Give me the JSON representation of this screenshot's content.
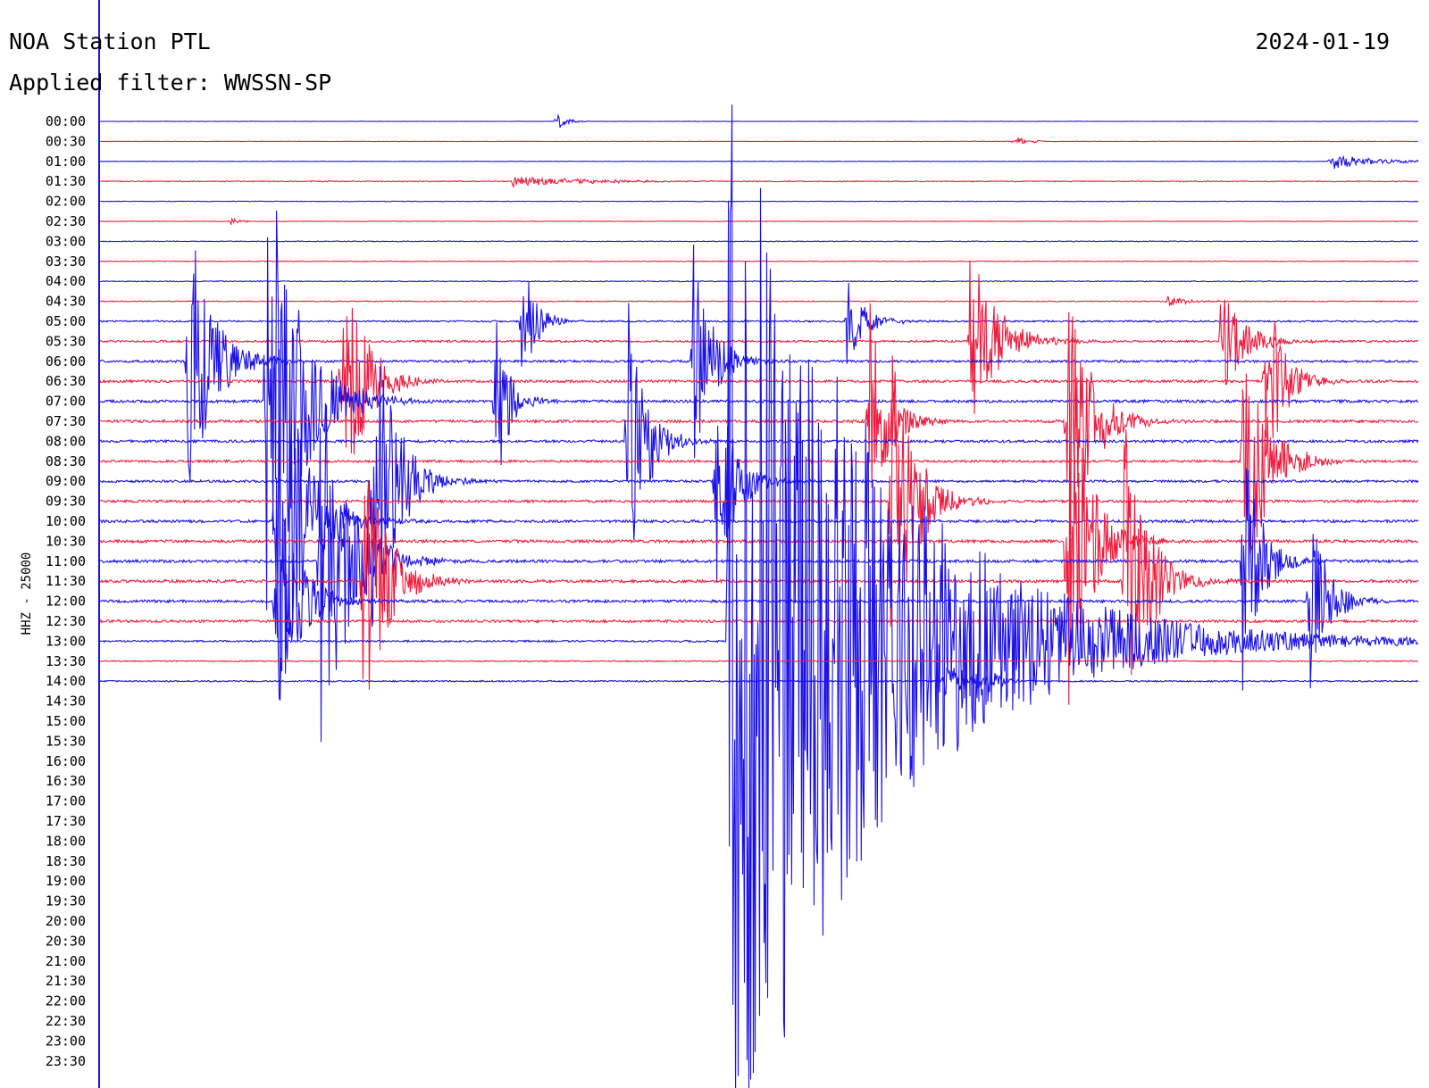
{
  "header": {
    "station": "NOA Station PTL",
    "filter": "Applied filter: WWSSN-SP",
    "date": "2024-01-19"
  },
  "colors": {
    "blue": "#1a10e8",
    "red": "#f01a3c",
    "background": "#ffffff",
    "axis": "#1a10e8"
  },
  "chart_data": {
    "type": "line",
    "title": "NOA Station PTL",
    "subtitle": "Applied filter: WWSSN-SP",
    "date": "2024-01-19",
    "ylabel": "HHZ - 25000",
    "xlabel": "",
    "grid": false,
    "rows": [
      "00:00",
      "00:30",
      "01:00",
      "01:30",
      "02:00",
      "02:30",
      "03:00",
      "03:30",
      "04:00",
      "04:30",
      "05:00",
      "05:30",
      "06:00",
      "06:30",
      "07:00",
      "07:30",
      "08:00",
      "08:30",
      "09:00",
      "09:30",
      "10:00",
      "10:30",
      "11:00",
      "11:30",
      "12:00",
      "12:30",
      "13:00",
      "13:30",
      "14:00",
      "14:30",
      "15:00",
      "15:30",
      "16:00",
      "16:30",
      "17:00",
      "17:30",
      "18:00",
      "18:30",
      "19:00",
      "19:30",
      "20:00",
      "20:30",
      "21:00",
      "21:30",
      "22:00",
      "22:30",
      "23:00",
      "23:30"
    ],
    "recorded_rows": 29,
    "row_colors": [
      "blue",
      "red"
    ],
    "x_range_minutes": [
      0,
      30
    ],
    "noise": [
      0.2,
      0.2,
      0.2,
      0.5,
      0.3,
      0.3,
      0.4,
      0.4,
      0.5,
      0.5,
      0.9,
      1.1,
      1.3,
      1.4,
      1.5,
      1.5,
      1.4,
      1.3,
      1.3,
      1.4,
      1.5,
      1.6,
      1.6,
      1.6,
      1.5,
      1.4,
      1.0,
      0.6,
      0.8
    ],
    "events": [
      {
        "row": 0,
        "minute": 10.4,
        "amplitude": 12,
        "duration": 0.2
      },
      {
        "row": 1,
        "minute": 20.8,
        "amplitude": 6,
        "duration": 0.3
      },
      {
        "row": 2,
        "minute": 28.0,
        "amplitude": 10,
        "duration": 0.9
      },
      {
        "row": 3,
        "minute": 9.4,
        "amplitude": 6,
        "duration": 1.6
      },
      {
        "row": 5,
        "minute": 3.0,
        "amplitude": 4,
        "duration": 0.2
      },
      {
        "row": 9,
        "minute": 24.3,
        "amplitude": 6,
        "duration": 0.5
      },
      {
        "row": 10,
        "minute": 9.6,
        "amplitude": 80,
        "duration": 0.3
      },
      {
        "row": 10,
        "minute": 17.0,
        "amplitude": 50,
        "duration": 0.4
      },
      {
        "row": 11,
        "minute": 19.8,
        "amplitude": 110,
        "duration": 0.6
      },
      {
        "row": 11,
        "minute": 25.5,
        "amplitude": 70,
        "duration": 0.5
      },
      {
        "row": 12,
        "minute": 2.0,
        "amplitude": 200,
        "duration": 0.5
      },
      {
        "row": 12,
        "minute": 13.5,
        "amplitude": 140,
        "duration": 0.4
      },
      {
        "row": 13,
        "minute": 5.5,
        "amplitude": 160,
        "duration": 0.5
      },
      {
        "row": 13,
        "minute": 26.5,
        "amplitude": 120,
        "duration": 0.4
      },
      {
        "row": 14,
        "minute": 3.8,
        "amplitude": 300,
        "duration": 0.7
      },
      {
        "row": 14,
        "minute": 9.0,
        "amplitude": 120,
        "duration": 0.3
      },
      {
        "row": 15,
        "minute": 17.5,
        "amplitude": 150,
        "duration": 0.4
      },
      {
        "row": 15,
        "minute": 22.0,
        "amplitude": 180,
        "duration": 0.5
      },
      {
        "row": 16,
        "minute": 12.0,
        "amplitude": 180,
        "duration": 0.4
      },
      {
        "row": 17,
        "minute": 26.0,
        "amplitude": 180,
        "duration": 0.5
      },
      {
        "row": 18,
        "minute": 6.2,
        "amplitude": 220,
        "duration": 0.5
      },
      {
        "row": 18,
        "minute": 14.0,
        "amplitude": 160,
        "duration": 0.4
      },
      {
        "row": 19,
        "minute": 18.0,
        "amplitude": 200,
        "duration": 0.5
      },
      {
        "row": 20,
        "minute": 4.0,
        "amplitude": 250,
        "duration": 0.6
      },
      {
        "row": 21,
        "minute": 22.0,
        "amplitude": 220,
        "duration": 0.5
      },
      {
        "row": 22,
        "minute": 5.0,
        "amplitude": 260,
        "duration": 0.6
      },
      {
        "row": 22,
        "minute": 26.0,
        "amplitude": 150,
        "duration": 0.4
      },
      {
        "row": 23,
        "minute": 6.0,
        "amplitude": 180,
        "duration": 0.5
      },
      {
        "row": 23,
        "minute": 23.3,
        "amplitude": 200,
        "duration": 0.5
      },
      {
        "row": 24,
        "minute": 4.0,
        "amplitude": 150,
        "duration": 0.5
      },
      {
        "row": 24,
        "minute": 27.5,
        "amplitude": 120,
        "duration": 0.4
      },
      {
        "row": 26,
        "minute": 14.3,
        "amplitude": 700,
        "duration": 3.0
      },
      {
        "row": 28,
        "minute": 19.2,
        "amplitude": 30,
        "duration": 0.5
      },
      {
        "row": 28,
        "minute": 20.2,
        "amplitude": 15,
        "duration": 0.3
      }
    ]
  }
}
